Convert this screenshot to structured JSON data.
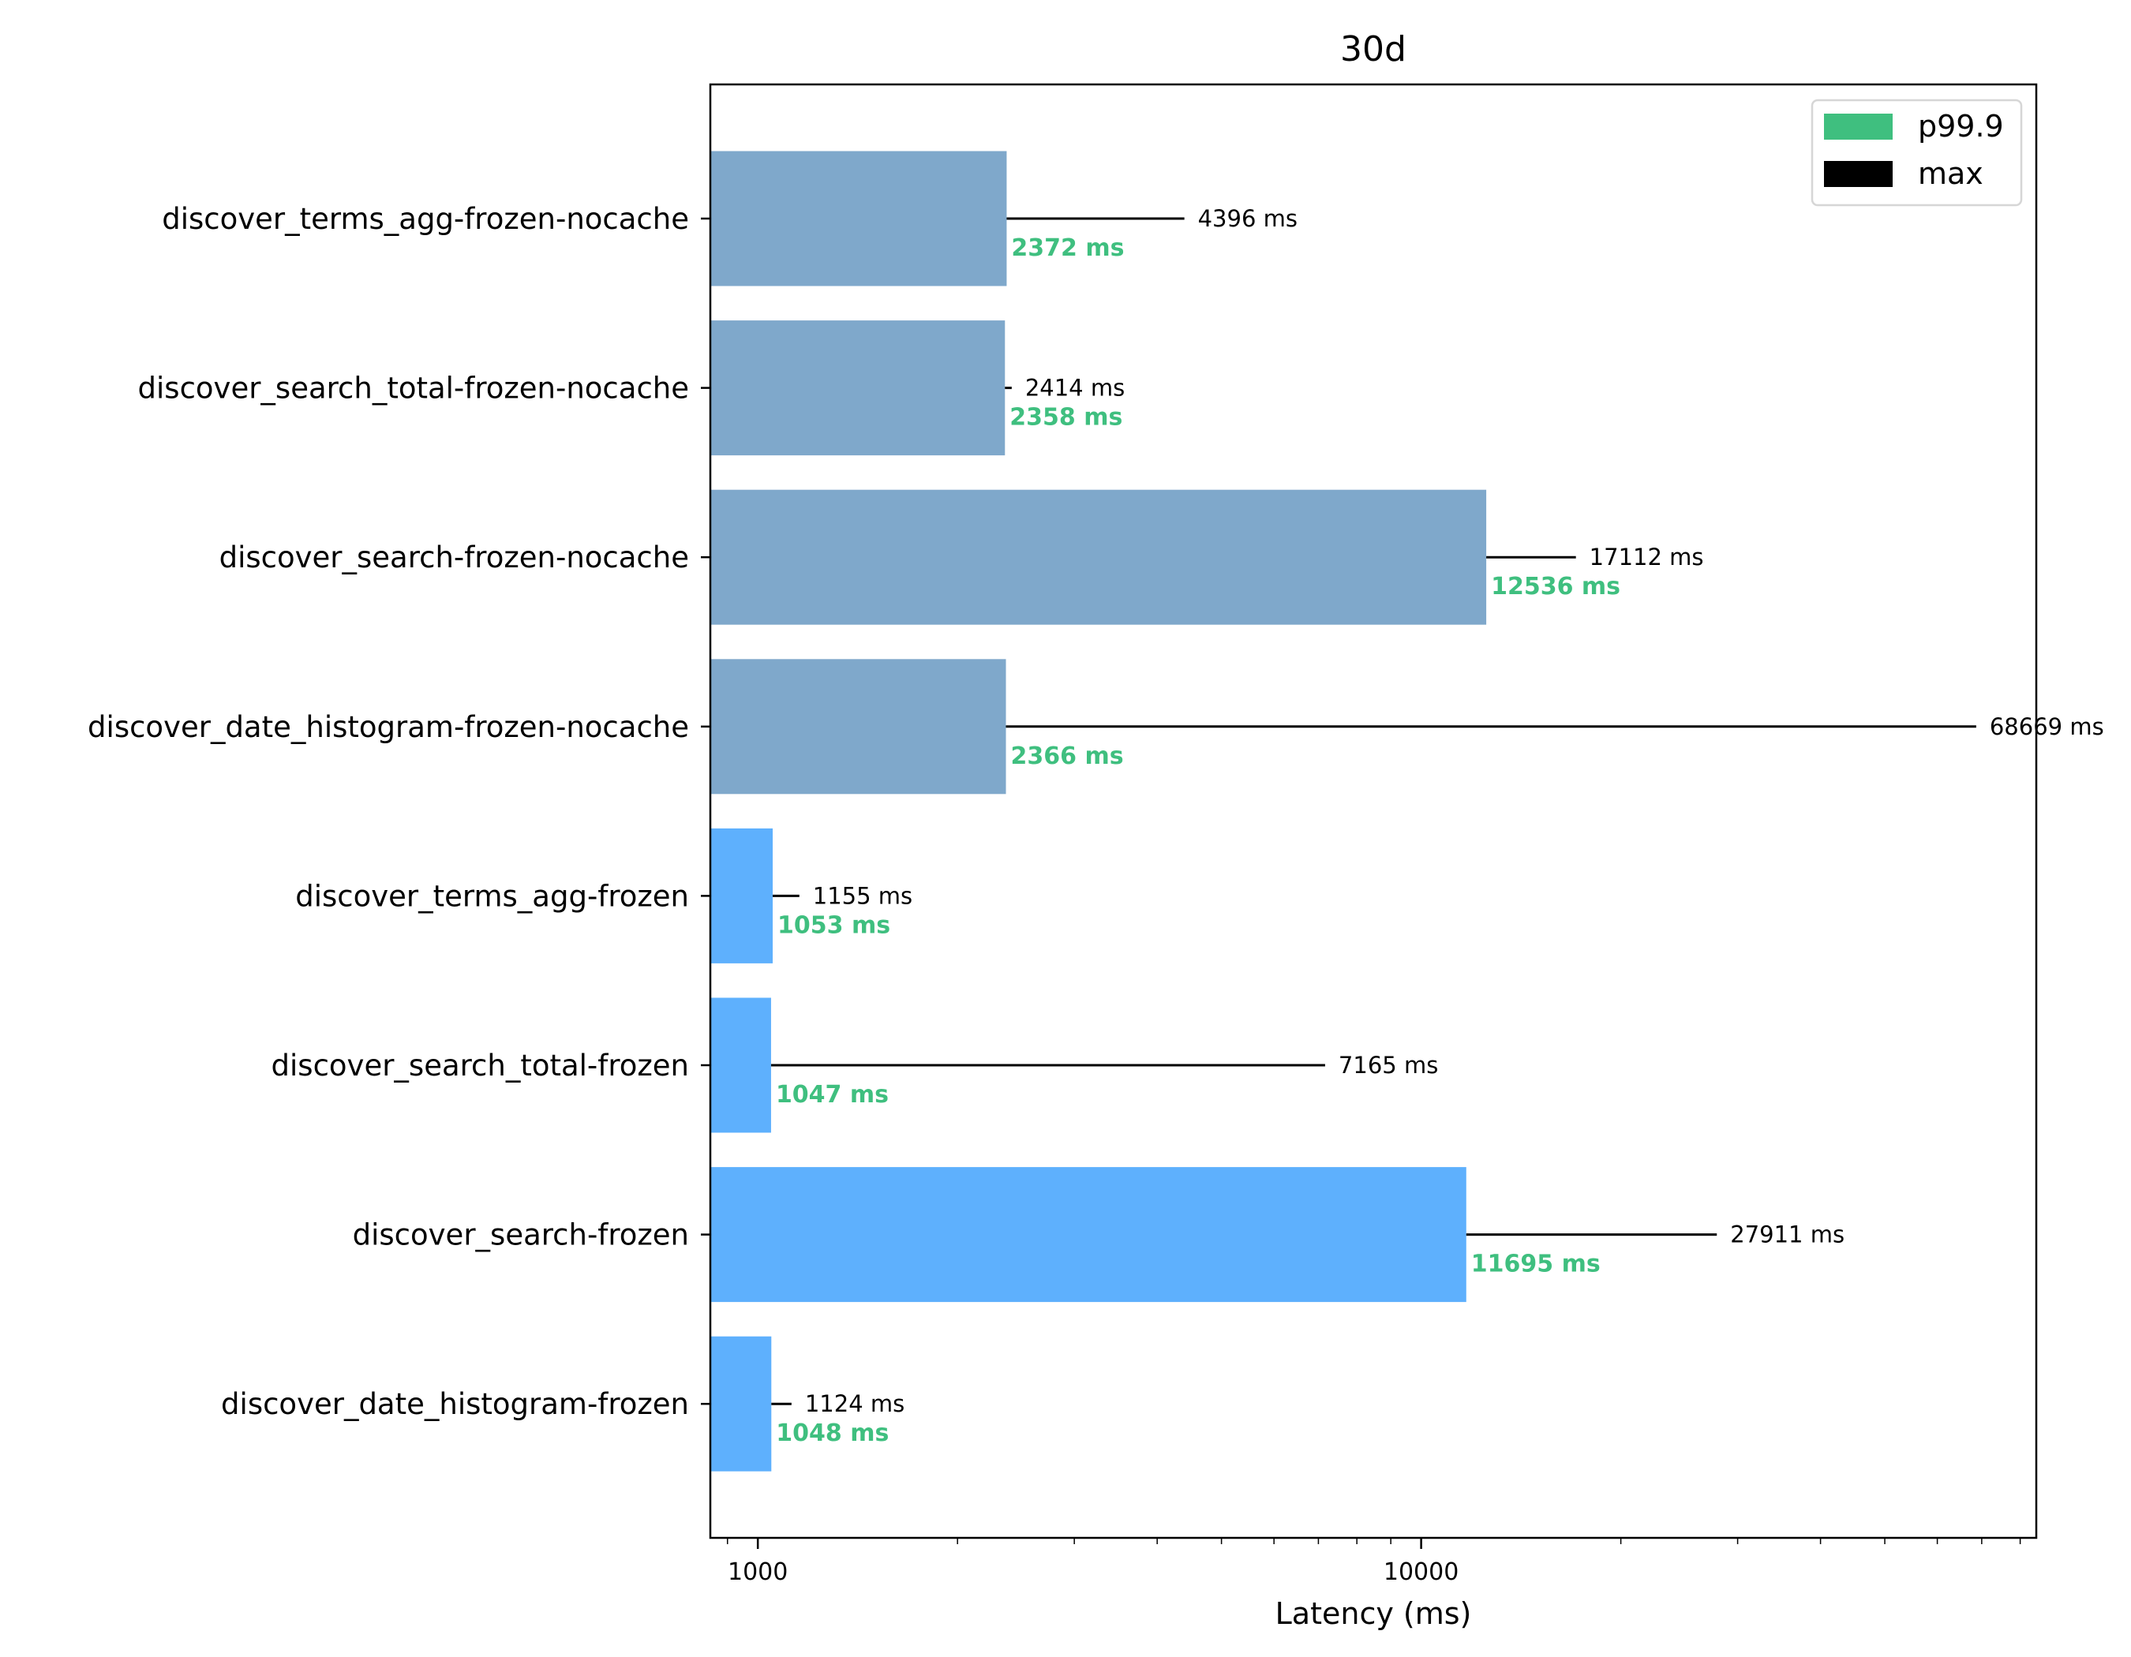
{
  "chart_data": {
    "type": "bar",
    "orientation": "horizontal",
    "title": "30d",
    "xlabel": "Latency (ms)",
    "ylabel": "",
    "xscale": "log",
    "xlim": [
      848,
      84600
    ],
    "xticks": [
      1000,
      10000
    ],
    "xtick_labels": [
      "1000",
      "10000"
    ],
    "grid": false,
    "legend_position": "top-right",
    "legend": [
      {
        "label": "p99.9",
        "color": "#3fbf7f"
      },
      {
        "label": "max",
        "color": "#000000"
      }
    ],
    "categories": [
      "discover_terms_agg-frozen-nocache",
      "discover_search_total-frozen-nocache",
      "discover_search-frozen-nocache",
      "discover_date_histogram-frozen-nocache",
      "discover_terms_agg-frozen",
      "discover_search_total-frozen",
      "discover_search-frozen",
      "discover_date_histogram-frozen"
    ],
    "series": [
      {
        "name": "p99.9",
        "values": [
          2372,
          2358,
          12536,
          2366,
          1053,
          1047,
          11695,
          1048
        ],
        "labels": [
          "2372 ms",
          "2358 ms",
          "12536 ms",
          "2366 ms",
          "1053 ms",
          "1047 ms",
          "11695 ms",
          "1048 ms"
        ]
      },
      {
        "name": "max",
        "values": [
          4396,
          2414,
          17112,
          68669,
          1155,
          7165,
          27911,
          1124
        ],
        "labels": [
          "4396 ms",
          "2414 ms",
          "17112 ms",
          "68669 ms",
          "1155 ms",
          "7165 ms",
          "27911 ms",
          "1124 ms"
        ]
      }
    ],
    "bar_colors": [
      "#7fa8cb",
      "#7fa8cb",
      "#7fa8cb",
      "#7fa8cb",
      "#5eb0fd",
      "#5eb0fd",
      "#5eb0fd",
      "#5eb0fd"
    ],
    "label_color_p999": "#3fbf7f",
    "label_color_max": "#000000"
  }
}
